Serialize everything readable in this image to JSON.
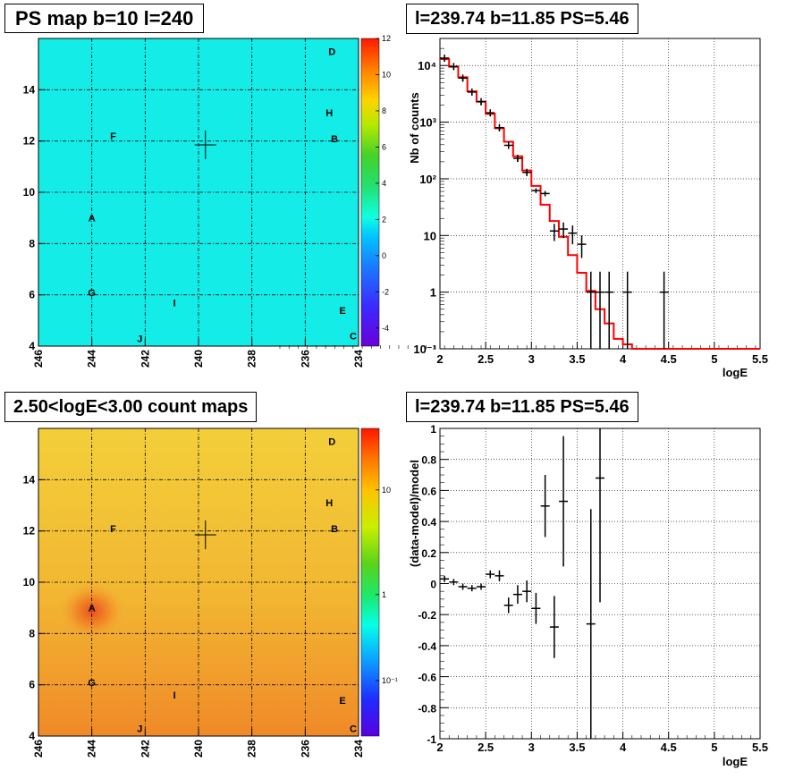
{
  "panels": {
    "ps_map_title": "PS map b=10 l=240",
    "spectrum_title": "l=239.74 b=11.85 PS=5.46",
    "count_map_title": "2.50<logE<3.00 count maps",
    "residual_title": "l=239.74 b=11.85 PS=5.46"
  },
  "chart_data": [
    {
      "type": "heatmap",
      "title": "PS map b=10 l=240",
      "x_ticks": [
        "246",
        "244",
        "242",
        "240",
        "238",
        "236",
        "234"
      ],
      "y_ticks": [
        "4",
        "6",
        "8",
        "10",
        "12",
        "14"
      ],
      "xlim": [
        246,
        234
      ],
      "ylim": [
        4,
        16
      ],
      "grid": true,
      "colorbar": {
        "range": [
          -5,
          12
        ],
        "ticks": [
          "12",
          "10",
          "8",
          "6",
          "4",
          "2",
          "0",
          "-2",
          "-4"
        ]
      },
      "marker": {
        "l": 239.74,
        "b": 11.85
      },
      "sources": [
        {
          "name": "D",
          "l": 235.0,
          "b": 15.5
        },
        {
          "name": "H",
          "l": 235.1,
          "b": 13.1
        },
        {
          "name": "F",
          "l": 243.2,
          "b": 12.2
        },
        {
          "name": "B",
          "l": 234.9,
          "b": 12.1
        },
        {
          "name": "A",
          "l": 244.0,
          "b": 9.0
        },
        {
          "name": "G",
          "l": 244.0,
          "b": 6.1
        },
        {
          "name": "I",
          "l": 240.9,
          "b": 5.7
        },
        {
          "name": "E",
          "l": 234.6,
          "b": 5.4
        },
        {
          "name": "J",
          "l": 242.2,
          "b": 4.3
        },
        {
          "name": "C",
          "l": 234.2,
          "b": 4.4
        }
      ]
    },
    {
      "type": "line",
      "title": "l=239.74 b=11.85 PS=5.46",
      "xlabel": "logE",
      "ylabel": "Nb of counts",
      "xlim": [
        2,
        5.5
      ],
      "ylim": [
        0.1,
        30000
      ],
      "y_log": true,
      "grid": true,
      "x_ticks": [
        "2",
        "2.5",
        "3",
        "3.5",
        "4",
        "4.5",
        "5",
        "5.5"
      ],
      "series": [
        {
          "kind": "model_histogram",
          "color": "#ff0000",
          "bin_edges": [
            2.0,
            2.1,
            2.2,
            2.3,
            2.4,
            2.5,
            2.6,
            2.7,
            2.8,
            2.9,
            3.0,
            3.1,
            3.2,
            3.3,
            3.4,
            3.5,
            3.6,
            3.7,
            3.8,
            3.9,
            4.0,
            4.1,
            5.5
          ],
          "values": [
            13000,
            9500,
            6200,
            3500,
            2300,
            1400,
            780,
            450,
            250,
            140,
            75,
            35,
            18,
            9.5,
            4.5,
            2.2,
            1.05,
            0.5,
            0.28,
            0.15,
            0.12,
            0.1
          ]
        },
        {
          "kind": "data_points",
          "color": "#000000",
          "x": [
            2.05,
            2.15,
            2.25,
            2.35,
            2.45,
            2.55,
            2.65,
            2.75,
            2.85,
            2.95,
            3.05,
            3.15,
            3.25,
            3.35,
            3.45,
            3.55,
            3.65,
            3.75,
            3.85,
            4.05,
            4.45
          ],
          "y": [
            13500,
            9600,
            6000,
            3400,
            2300,
            1460,
            800,
            390,
            230,
            130,
            62,
            55,
            12,
            13,
            11,
            7,
            1,
            1,
            1,
            1,
            1
          ],
          "err_lo": [
            0,
            0,
            0,
            0,
            0,
            0,
            0,
            0,
            0,
            0,
            6,
            6,
            4,
            4,
            4,
            3,
            1,
            1,
            1,
            1,
            1
          ],
          "err_hi": [
            0,
            0,
            0,
            0,
            0,
            0,
            0,
            0,
            0,
            0,
            6,
            6,
            4,
            4,
            4,
            3,
            1.3,
            1.3,
            1.3,
            1.3,
            1.3
          ]
        }
      ]
    },
    {
      "type": "heatmap",
      "title": "2.50<logE<3.00 count maps",
      "x_ticks": [
        "246",
        "244",
        "242",
        "240",
        "238",
        "236",
        "234"
      ],
      "y_ticks": [
        "4",
        "6",
        "8",
        "10",
        "12",
        "14"
      ],
      "xlim": [
        246,
        234
      ],
      "ylim": [
        4,
        16
      ],
      "grid": true,
      "colorbar": {
        "scale": "log",
        "ticks": [
          "10",
          "1",
          "10^-1"
        ]
      },
      "marker": {
        "l": 239.74,
        "b": 11.85
      },
      "sources": [
        {
          "name": "D",
          "l": 235.0,
          "b": 15.5
        },
        {
          "name": "H",
          "l": 235.1,
          "b": 13.1
        },
        {
          "name": "F",
          "l": 243.2,
          "b": 12.1
        },
        {
          "name": "B",
          "l": 234.9,
          "b": 12.1
        },
        {
          "name": "A",
          "l": 244.0,
          "b": 9.0
        },
        {
          "name": "G",
          "l": 244.0,
          "b": 6.1
        },
        {
          "name": "I",
          "l": 240.9,
          "b": 5.6
        },
        {
          "name": "E",
          "l": 234.6,
          "b": 5.4
        },
        {
          "name": "J",
          "l": 242.2,
          "b": 4.3
        },
        {
          "name": "C",
          "l": 234.2,
          "b": 4.3
        }
      ]
    },
    {
      "type": "scatter",
      "title": "l=239.74 b=11.85 PS=5.46",
      "xlabel": "logE",
      "ylabel": "(data-model)/model",
      "xlim": [
        2,
        5.5
      ],
      "ylim": [
        -1,
        1
      ],
      "grid": true,
      "x_ticks": [
        "2",
        "2.5",
        "3",
        "3.5",
        "4",
        "4.5",
        "5",
        "5.5"
      ],
      "y_ticks": [
        "1",
        "0.8",
        "0.6",
        "0.4",
        "0.2",
        "0",
        "-0.2",
        "-0.4",
        "-0.6",
        "-0.8",
        "-1"
      ],
      "points": {
        "x": [
          2.05,
          2.15,
          2.25,
          2.35,
          2.45,
          2.55,
          2.65,
          2.75,
          2.85,
          2.95,
          3.05,
          3.15,
          3.25,
          3.35,
          3.65,
          3.75
        ],
        "y": [
          0.03,
          0.01,
          -0.02,
          -0.03,
          -0.02,
          0.06,
          0.05,
          -0.14,
          -0.07,
          -0.05,
          -0.16,
          0.5,
          -0.28,
          0.53,
          -0.26,
          0.68
        ],
        "err": [
          0.005,
          0.008,
          0.01,
          0.015,
          0.02,
          0.025,
          0.035,
          0.05,
          0.06,
          0.07,
          0.1,
          0.2,
          0.2,
          0.42,
          0.74,
          0.8
        ]
      }
    }
  ]
}
